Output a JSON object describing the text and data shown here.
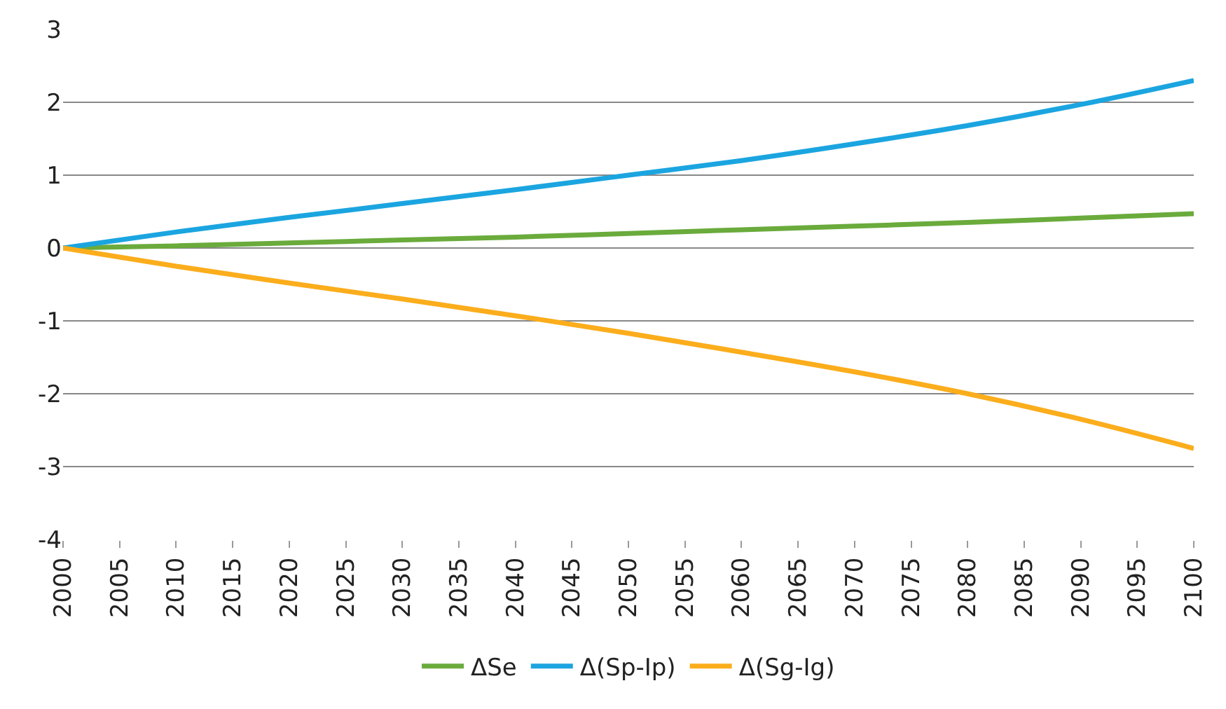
{
  "chart_data": {
    "type": "line",
    "x": [
      2000,
      2010,
      2020,
      2030,
      2040,
      2050,
      2060,
      2070,
      2080,
      2090,
      2100
    ],
    "series": [
      {
        "name": "ΔSe",
        "color": "#6aab3c",
        "values": [
          0,
          0.03,
          0.07,
          0.11,
          0.15,
          0.2,
          0.25,
          0.3,
          0.35,
          0.41,
          0.47
        ]
      },
      {
        "name": "Δ(Sp-Ip)",
        "color": "#1ba5e0",
        "values": [
          0,
          0.22,
          0.42,
          0.61,
          0.8,
          1.0,
          1.2,
          1.43,
          1.68,
          1.97,
          2.3
        ]
      },
      {
        "name": "Δ(Sg-Ig)",
        "color": "#fbad1c",
        "values": [
          0,
          -0.25,
          -0.48,
          -0.7,
          -0.93,
          -1.17,
          -1.43,
          -1.7,
          -2.0,
          -2.35,
          -2.75
        ]
      }
    ],
    "xlim": [
      2000,
      2100
    ],
    "xticks": [
      2000,
      2005,
      2010,
      2015,
      2020,
      2025,
      2030,
      2035,
      2040,
      2045,
      2050,
      2055,
      2060,
      2065,
      2070,
      2075,
      2080,
      2085,
      2090,
      2095,
      2100
    ],
    "ylim": [
      -4,
      3
    ],
    "yticks": [
      -4,
      -3,
      -2,
      -1,
      0,
      1,
      2,
      3
    ],
    "grid": "y",
    "legend": "bottom",
    "marker": "none",
    "line_style": "solid"
  }
}
